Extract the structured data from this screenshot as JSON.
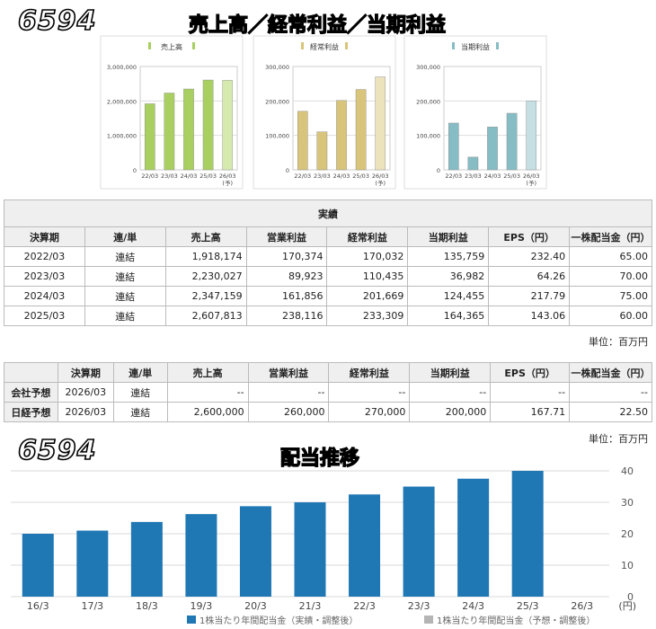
{
  "header": {
    "code": "6594",
    "title": "売上高／経常利益／当期利益"
  },
  "mini_charts": [
    {
      "legend": "売上高",
      "color": "#a8cf5f",
      "forecast_color": "#d6eab0",
      "chart_data": {
        "type": "bar",
        "categories": [
          "22/03",
          "23/03",
          "24/03",
          "25/03",
          "26/03"
        ],
        "values": [
          1918174,
          2230027,
          2347159,
          2607813,
          2600000
        ],
        "ylim": [
          0,
          3000000
        ],
        "yticks": [
          "0",
          "1,000,000",
          "2,000,000",
          "3,000,000"
        ],
        "forecast_mark": "(予)"
      }
    },
    {
      "legend": "経常利益",
      "color": "#d8c47a",
      "forecast_color": "#ece2bc",
      "chart_data": {
        "type": "bar",
        "categories": [
          "22/03",
          "23/03",
          "24/03",
          "25/03",
          "26/03"
        ],
        "values": [
          170032,
          110435,
          201669,
          233309,
          270000
        ],
        "ylim": [
          0,
          300000
        ],
        "yticks": [
          "0",
          "100,000",
          "200,000",
          "300,000"
        ],
        "forecast_mark": "(予)"
      }
    },
    {
      "legend": "当期利益",
      "color": "#86bcc4",
      "forecast_color": "#c5dfe3",
      "chart_data": {
        "type": "bar",
        "categories": [
          "22/03",
          "23/03",
          "24/03",
          "25/03",
          "26/03"
        ],
        "values": [
          135759,
          36982,
          124455,
          164365,
          200000
        ],
        "ylim": [
          0,
          300000
        ],
        "yticks": [
          "0",
          "100,000",
          "200,000",
          "300,000"
        ],
        "forecast_mark": "(予)"
      }
    }
  ],
  "actuals": {
    "caption": "実績",
    "headers": [
      "決算期",
      "連/単",
      "売上高",
      "営業利益",
      "経常利益",
      "当期利益",
      "EPS（円）",
      "一株配当金（円）"
    ],
    "rows": [
      [
        "2022/03",
        "連結",
        "1,918,174",
        "170,374",
        "170,032",
        "135,759",
        "232.40",
        "65.00"
      ],
      [
        "2023/03",
        "連結",
        "2,230,027",
        "89,923",
        "110,435",
        "36,982",
        "64.26",
        "70.00"
      ],
      [
        "2024/03",
        "連結",
        "2,347,159",
        "161,856",
        "201,669",
        "124,455",
        "217.79",
        "75.00"
      ],
      [
        "2025/03",
        "連結",
        "2,607,813",
        "238,116",
        "233,309",
        "164,365",
        "143.06",
        "60.00"
      ]
    ],
    "unit": "単位：百万円"
  },
  "forecast": {
    "headers": [
      "",
      "決算期",
      "連/単",
      "売上高",
      "営業利益",
      "経常利益",
      "当期利益",
      "EPS（円）",
      "一株配当金（円）"
    ],
    "rows": [
      [
        "会社予想",
        "2026/03",
        "連結",
        "--",
        "--",
        "--",
        "--",
        "--",
        "--"
      ],
      [
        "日経予想",
        "2026/03",
        "連結",
        "2,600,000",
        "260,000",
        "270,000",
        "200,000",
        "167.71",
        "22.50"
      ]
    ],
    "unit": "単位：百万円"
  },
  "dividend": {
    "code": "6594",
    "title": "配当推移",
    "color": "#1f77b4",
    "forecast_color": "#b5b5b5",
    "chart_data": {
      "type": "bar",
      "categories": [
        "16/3",
        "17/3",
        "18/3",
        "19/3",
        "20/3",
        "21/3",
        "22/3",
        "23/3",
        "24/3",
        "25/3",
        "26/3"
      ],
      "values": [
        20,
        21,
        23.75,
        26.25,
        28.75,
        30,
        32.5,
        35,
        37.5,
        40,
        null
      ],
      "ylim": [
        0,
        40
      ],
      "yticks": [
        "0",
        "10",
        "20",
        "30",
        "40"
      ],
      "yunit": "(円)",
      "series": [
        {
          "name": "1株当たり年間配当金（実績・調整後）"
        },
        {
          "name": "1株当たり年間配当金（予想・調整後）"
        }
      ],
      "legend_position": "bottom",
      "grid": true
    }
  }
}
